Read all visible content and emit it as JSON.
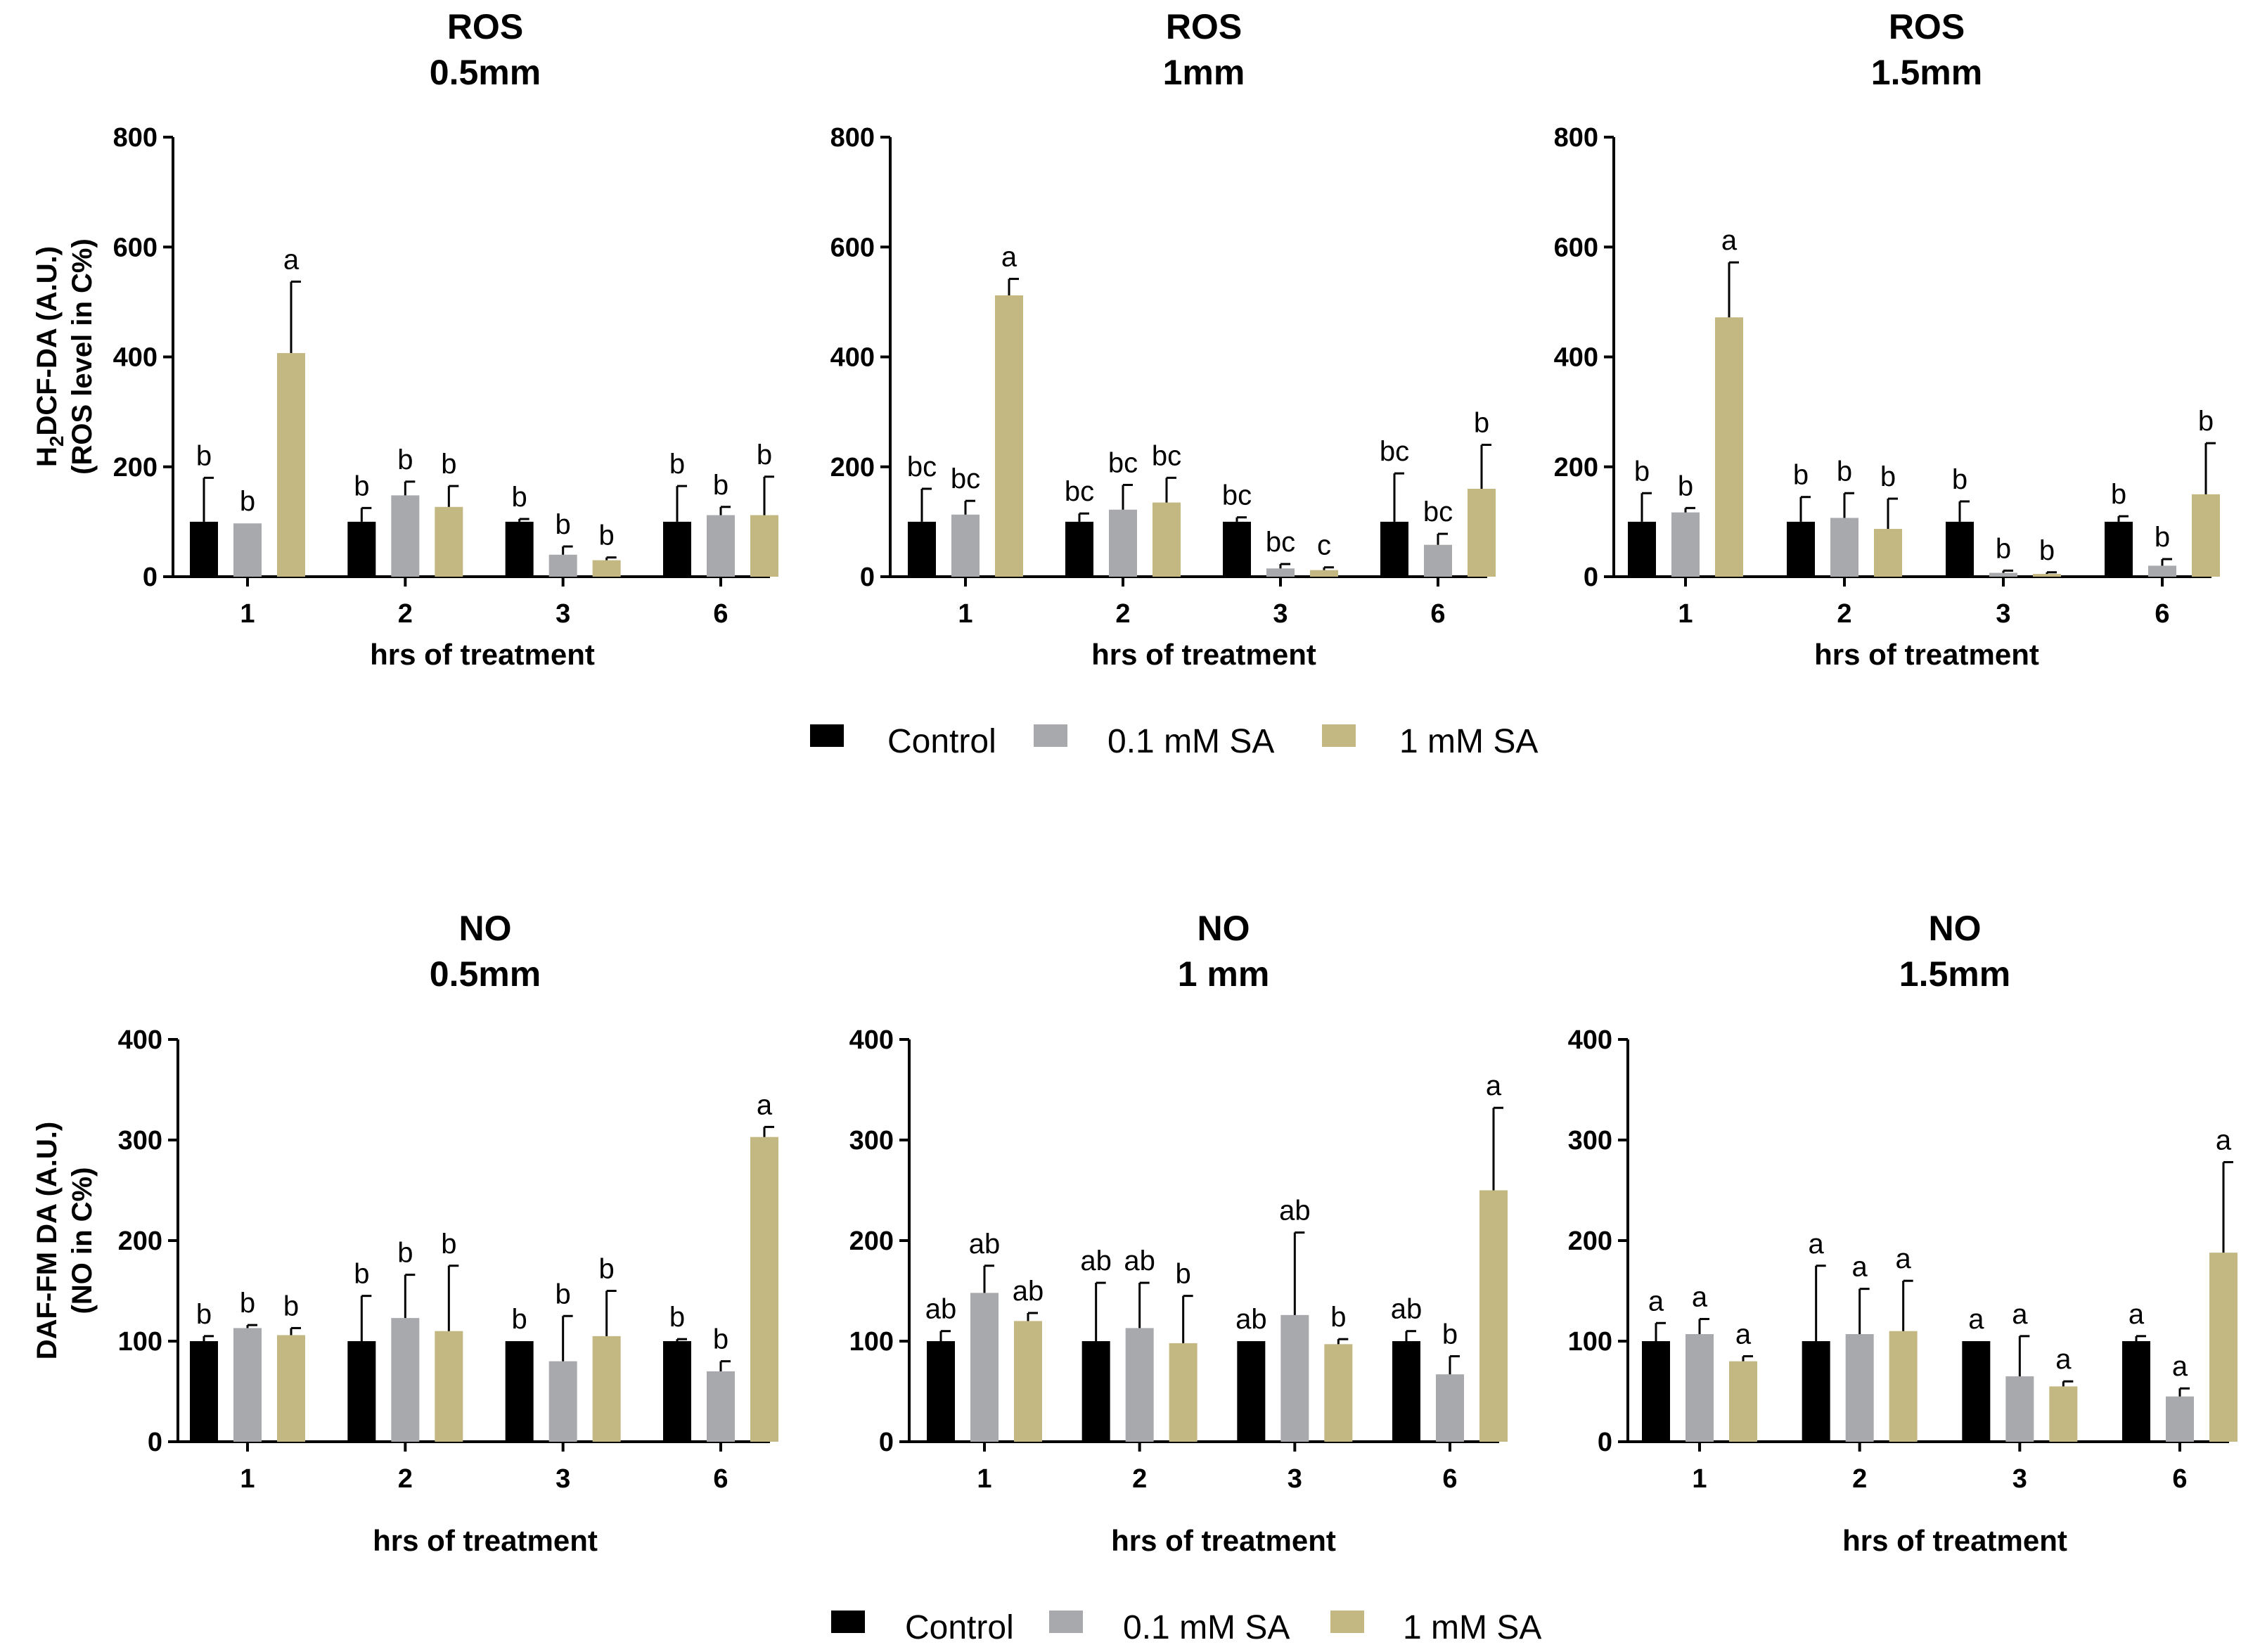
{
  "chart_data": [
    {
      "id": "ros-05",
      "type": "bar",
      "title": [
        "ROS",
        "0.5mm"
      ],
      "ylabel": "H2DCF-DA (A.U.) (ROS level in C%)",
      "ylabel_lines": [
        "H",
        "2",
        "DCF-DA (A.U.)",
        "(ROS level in C%)"
      ],
      "xlabel": "hrs of treatment",
      "ylim": [
        0,
        800
      ],
      "yticks": [
        0,
        200,
        400,
        600,
        800
      ],
      "categories": [
        "1",
        "2",
        "3",
        "6"
      ],
      "series": [
        {
          "name": "Control",
          "values": [
            100,
            100,
            100,
            100
          ],
          "errors": [
            80,
            25,
            5,
            65
          ],
          "labels": [
            "b",
            "b",
            "b",
            "b"
          ]
        },
        {
          "name": "0.1 mM SA",
          "values": [
            97,
            148,
            40,
            112
          ],
          "errors": [
            0,
            25,
            15,
            15
          ],
          "labels": [
            "b",
            "b",
            "b",
            "b"
          ]
        },
        {
          "name": "1 mM SA",
          "values": [
            407,
            127,
            30,
            112
          ],
          "errors": [
            130,
            38,
            5,
            70
          ],
          "labels": [
            "a",
            "b",
            "b",
            "b"
          ]
        }
      ]
    },
    {
      "id": "ros-1",
      "type": "bar",
      "title": [
        "ROS",
        "1mm"
      ],
      "xlabel": "hrs of treatment",
      "ylim": [
        0,
        800
      ],
      "yticks": [
        0,
        200,
        400,
        600,
        800
      ],
      "categories": [
        "1",
        "2",
        "3",
        "6"
      ],
      "series": [
        {
          "name": "Control",
          "values": [
            100,
            100,
            100,
            100
          ],
          "errors": [
            60,
            15,
            8,
            88
          ],
          "labels": [
            "bc",
            "bc",
            "bc",
            "bc"
          ]
        },
        {
          "name": "0.1 mM SA",
          "values": [
            113,
            122,
            15,
            58
          ],
          "errors": [
            25,
            45,
            8,
            20
          ],
          "labels": [
            "bc",
            "bc",
            "bc",
            "bc"
          ]
        },
        {
          "name": "1 mM SA",
          "values": [
            512,
            135,
            12,
            160
          ],
          "errors": [
            30,
            45,
            5,
            80
          ],
          "labels": [
            "a",
            "bc",
            "c",
            "b"
          ]
        }
      ]
    },
    {
      "id": "ros-15",
      "type": "bar",
      "title": [
        "ROS",
        "1.5mm"
      ],
      "xlabel": "hrs of treatment",
      "ylim": [
        0,
        800
      ],
      "yticks": [
        0,
        200,
        400,
        600,
        800
      ],
      "categories": [
        "1",
        "2",
        "3",
        "6"
      ],
      "series": [
        {
          "name": "Control",
          "values": [
            100,
            100,
            100,
            100
          ],
          "errors": [
            52,
            45,
            37,
            10
          ],
          "labels": [
            "b",
            "b",
            "b",
            "b"
          ]
        },
        {
          "name": "0.1 mM SA",
          "values": [
            117,
            107,
            7,
            20
          ],
          "errors": [
            8,
            45,
            4,
            12
          ],
          "labels": [
            "b",
            "b",
            "b",
            "b"
          ]
        },
        {
          "name": "1 mM SA",
          "values": [
            472,
            87,
            5,
            150
          ],
          "errors": [
            100,
            55,
            3,
            93
          ],
          "labels": [
            "a",
            "b",
            "b",
            "b"
          ]
        }
      ]
    },
    {
      "id": "no-05",
      "type": "bar",
      "title": [
        "NO",
        "0.5mm"
      ],
      "ylabel": "DAF-FM DA (A.U.) (NO in C%)",
      "ylabel_lines": [
        "DAF-FM DA (A.U.)",
        "(NO in C%)"
      ],
      "xlabel": "hrs of treatment",
      "ylim": [
        0,
        400
      ],
      "yticks": [
        0,
        100,
        200,
        300,
        400
      ],
      "categories": [
        "1",
        "2",
        "3",
        "6"
      ],
      "series": [
        {
          "name": "Control",
          "values": [
            100,
            100,
            100,
            100
          ],
          "errors": [
            5,
            45,
            0,
            2
          ],
          "labels": [
            "b",
            "b",
            "b",
            "b"
          ]
        },
        {
          "name": "0.1 mM SA",
          "values": [
            113,
            123,
            80,
            70
          ],
          "errors": [
            3,
            43,
            45,
            10
          ],
          "labels": [
            "b",
            "b",
            "b",
            "b"
          ]
        },
        {
          "name": "1 mM SA",
          "values": [
            106,
            110,
            105,
            303
          ],
          "errors": [
            7,
            65,
            45,
            10
          ],
          "labels": [
            "b",
            "b",
            "b",
            "a"
          ]
        }
      ]
    },
    {
      "id": "no-1",
      "type": "bar",
      "title": [
        "NO",
        "1 mm"
      ],
      "xlabel": "hrs of treatment",
      "ylim": [
        0,
        400
      ],
      "yticks": [
        0,
        100,
        200,
        300,
        400
      ],
      "categories": [
        "1",
        "2",
        "3",
        "6"
      ],
      "series": [
        {
          "name": "Control",
          "values": [
            100,
            100,
            100,
            100
          ],
          "errors": [
            10,
            58,
            0,
            10
          ],
          "labels": [
            "ab",
            "ab",
            "ab",
            "ab"
          ]
        },
        {
          "name": "0.1 mM SA",
          "values": [
            148,
            113,
            126,
            67
          ],
          "errors": [
            27,
            45,
            82,
            18
          ],
          "labels": [
            "ab",
            "ab",
            "ab",
            "b"
          ]
        },
        {
          "name": "1 mM SA",
          "values": [
            120,
            98,
            97,
            250
          ],
          "errors": [
            8,
            47,
            5,
            82
          ],
          "labels": [
            "ab",
            "b",
            "b",
            "a"
          ]
        }
      ]
    },
    {
      "id": "no-15",
      "type": "bar",
      "title": [
        "NO",
        "1.5mm"
      ],
      "xlabel": "hrs of treatment",
      "ylim": [
        0,
        400
      ],
      "yticks": [
        0,
        100,
        200,
        300,
        400
      ],
      "categories": [
        "1",
        "2",
        "3",
        "6"
      ],
      "series": [
        {
          "name": "Control",
          "values": [
            100,
            100,
            100,
            100
          ],
          "errors": [
            18,
            75,
            0,
            5
          ],
          "labels": [
            "a",
            "a",
            "a",
            "a"
          ]
        },
        {
          "name": "0.1 mM SA",
          "values": [
            107,
            107,
            65,
            45
          ],
          "errors": [
            15,
            45,
            40,
            8
          ],
          "labels": [
            "a",
            "a",
            "a",
            "a"
          ]
        },
        {
          "name": "1 mM SA",
          "values": [
            80,
            110,
            55,
            188
          ],
          "errors": [
            5,
            50,
            5,
            90
          ],
          "labels": [
            "a",
            "a",
            "a",
            "a"
          ]
        }
      ]
    }
  ],
  "legends": [
    {
      "items": [
        {
          "label": "Control",
          "color": "#000000"
        },
        {
          "label": "0.1 mM SA",
          "color": "#a7a9ac"
        },
        {
          "label": "1 mM SA",
          "color": "#c4b882"
        }
      ]
    },
    {
      "items": [
        {
          "label": "Control",
          "color": "#000000"
        },
        {
          "label": "0.1 mM SA",
          "color": "#a7a9ac"
        },
        {
          "label": "1 mM SA",
          "color": "#c4b882"
        }
      ]
    }
  ],
  "series_colors": [
    "#000000",
    "#a7a9ac",
    "#c4b882"
  ]
}
